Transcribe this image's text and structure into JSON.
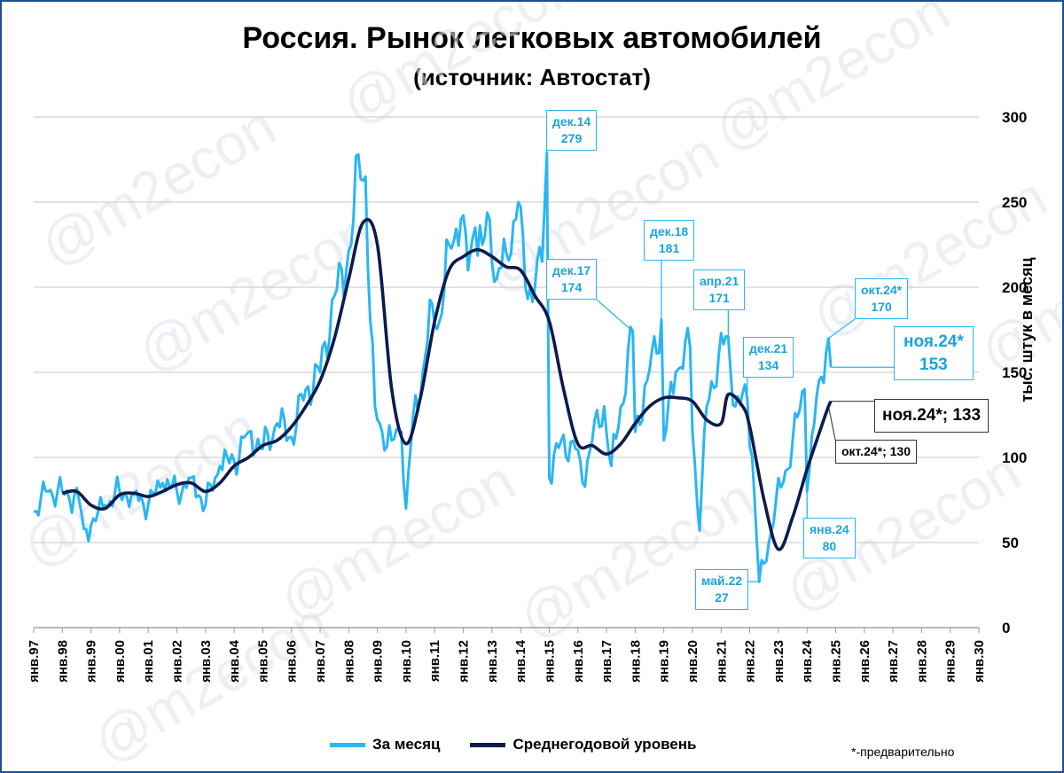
{
  "chart_data": {
    "type": "line",
    "title": "Россия. Рынок легковых автомобилей",
    "subtitle": "(источник: Автостат)",
    "ylabel": "тыс. штук в месяц",
    "ylim": [
      0,
      300
    ],
    "yticks": [
      "0",
      "50",
      "100",
      "150",
      "200",
      "250",
      "300"
    ],
    "xticks": [
      "янв.97",
      "янв.98",
      "янв.99",
      "янв.00",
      "янв.01",
      "янв.02",
      "янв.03",
      "янв.04",
      "янв.05",
      "янв.06",
      "янв.07",
      "янв.08",
      "янв.09",
      "янв.10",
      "янв.11",
      "янв.12",
      "янв.13",
      "янв.14",
      "янв.15",
      "янв.16",
      "янв.17",
      "янв.18",
      "янв.19",
      "янв.20",
      "янв.21",
      "янв.22",
      "янв.23",
      "янв.24",
      "янв.25",
      "янв.26",
      "янв.27",
      "янв.28",
      "янв.29",
      "янв.30"
    ],
    "grid": true,
    "legend_position": "bottom",
    "series": [
      {
        "name": "За месяц",
        "color": "#29b6f2",
        "points": [
          [
            "1997-01",
            68
          ],
          [
            "1997-07",
            80
          ],
          [
            "1998-01",
            80
          ],
          [
            "1998-04",
            75
          ],
          [
            "1998-07",
            82
          ],
          [
            "1998-10",
            58
          ],
          [
            "1999-01",
            60
          ],
          [
            "1999-07",
            72
          ],
          [
            "2000-01",
            80
          ],
          [
            "2000-07",
            78
          ],
          [
            "2001-01",
            72
          ],
          [
            "2001-07",
            85
          ],
          [
            "2002-01",
            80
          ],
          [
            "2002-07",
            88
          ],
          [
            "2003-01",
            72
          ],
          [
            "2003-07",
            95
          ],
          [
            "2004-01",
            98
          ],
          [
            "2004-07",
            115
          ],
          [
            "2005-01",
            105
          ],
          [
            "2005-07",
            120
          ],
          [
            "2006-01",
            112
          ],
          [
            "2006-07",
            140
          ],
          [
            "2007-01",
            150
          ],
          [
            "2007-07",
            195
          ],
          [
            "2007-12",
            210
          ],
          [
            "2008-03",
            240
          ],
          [
            "2008-05",
            278
          ],
          [
            "2008-08",
            265
          ],
          [
            "2008-10",
            180
          ],
          [
            "2008-12",
            130
          ],
          [
            "2009-03",
            115
          ],
          [
            "2009-07",
            110
          ],
          [
            "2009-11",
            115
          ],
          [
            "2010-01",
            70
          ],
          [
            "2010-04",
            125
          ],
          [
            "2010-08",
            150
          ],
          [
            "2010-12",
            190
          ],
          [
            "2011-03",
            180
          ],
          [
            "2011-07",
            225
          ],
          [
            "2011-12",
            240
          ],
          [
            "2012-03",
            210
          ],
          [
            "2012-06",
            235
          ],
          [
            "2012-09",
            225
          ],
          [
            "2012-12",
            240
          ],
          [
            "2013-03",
            205
          ],
          [
            "2013-07",
            220
          ],
          [
            "2013-12",
            250
          ],
          [
            "2014-03",
            200
          ],
          [
            "2014-07",
            200
          ],
          [
            "2014-10",
            215
          ],
          [
            "2014-12",
            279
          ],
          [
            "2015-01",
            88
          ],
          [
            "2015-06",
            110
          ],
          [
            "2015-12",
            105
          ],
          [
            "2016-03",
            85
          ],
          [
            "2016-07",
            110
          ],
          [
            "2016-12",
            130
          ],
          [
            "2017-03",
            95
          ],
          [
            "2017-07",
            130
          ],
          [
            "2017-12",
            174
          ],
          [
            "2018-01",
            115
          ],
          [
            "2018-06",
            145
          ],
          [
            "2018-12",
            181
          ],
          [
            "2019-01",
            110
          ],
          [
            "2019-06",
            150
          ],
          [
            "2019-12",
            165
          ],
          [
            "2020-01",
            115
          ],
          [
            "2020-04",
            57
          ],
          [
            "2020-07",
            130
          ],
          [
            "2020-12",
            160
          ],
          [
            "2021-04",
            171
          ],
          [
            "2021-07",
            130
          ],
          [
            "2021-12",
            134
          ],
          [
            "2022-02",
            100
          ],
          [
            "2022-05",
            27
          ],
          [
            "2022-09",
            50
          ],
          [
            "2022-12",
            75
          ],
          [
            "2023-03",
            85
          ],
          [
            "2023-07",
            110
          ],
          [
            "2023-12",
            140
          ],
          [
            "2024-01",
            80
          ],
          [
            "2024-06",
            145
          ],
          [
            "2024-10",
            170
          ],
          [
            "2024-11",
            153
          ]
        ]
      },
      {
        "name": "Среднегодовой уровень",
        "color": "#0d1b4c",
        "points": [
          [
            "1998-01",
            79
          ],
          [
            "1998-07",
            80
          ],
          [
            "1999-01",
            72
          ],
          [
            "1999-07",
            70
          ],
          [
            "2000-01",
            78
          ],
          [
            "2000-07",
            79
          ],
          [
            "2001-01",
            77
          ],
          [
            "2001-07",
            80
          ],
          [
            "2002-01",
            84
          ],
          [
            "2002-07",
            85
          ],
          [
            "2003-01",
            80
          ],
          [
            "2003-07",
            85
          ],
          [
            "2004-01",
            95
          ],
          [
            "2004-07",
            100
          ],
          [
            "2005-01",
            107
          ],
          [
            "2005-07",
            110
          ],
          [
            "2006-01",
            118
          ],
          [
            "2006-07",
            130
          ],
          [
            "2007-01",
            145
          ],
          [
            "2007-07",
            170
          ],
          [
            "2008-01",
            205
          ],
          [
            "2008-07",
            238
          ],
          [
            "2009-01",
            225
          ],
          [
            "2009-07",
            140
          ],
          [
            "2010-01",
            108
          ],
          [
            "2010-07",
            135
          ],
          [
            "2011-01",
            180
          ],
          [
            "2011-07",
            210
          ],
          [
            "2012-01",
            218
          ],
          [
            "2012-07",
            222
          ],
          [
            "2013-01",
            218
          ],
          [
            "2013-07",
            212
          ],
          [
            "2014-01",
            210
          ],
          [
            "2014-07",
            195
          ],
          [
            "2015-01",
            180
          ],
          [
            "2015-07",
            140
          ],
          [
            "2016-01",
            108
          ],
          [
            "2016-07",
            107
          ],
          [
            "2017-01",
            102
          ],
          [
            "2017-07",
            108
          ],
          [
            "2018-01",
            120
          ],
          [
            "2018-07",
            130
          ],
          [
            "2019-01",
            135
          ],
          [
            "2019-07",
            135
          ],
          [
            "2020-01",
            133
          ],
          [
            "2020-07",
            122
          ],
          [
            "2021-01",
            120
          ],
          [
            "2021-04",
            137
          ],
          [
            "2021-10",
            130
          ],
          [
            "2022-01",
            118
          ],
          [
            "2022-07",
            75
          ],
          [
            "2023-01",
            46
          ],
          [
            "2023-07",
            65
          ],
          [
            "2024-01",
            93
          ],
          [
            "2024-07",
            118
          ],
          [
            "2024-10",
            130
          ],
          [
            "2024-11",
            133
          ]
        ]
      }
    ],
    "annotations": [
      {
        "label": "дек.14",
        "value": "279"
      },
      {
        "label": "дек.17",
        "value": "174"
      },
      {
        "label": "дек.18",
        "value": "181"
      },
      {
        "label": "апр.21",
        "value": "171"
      },
      {
        "label": "дек.21",
        "value": "134"
      },
      {
        "label": "окт.24*",
        "value": "170"
      },
      {
        "label": "ноя.24*",
        "value": "153"
      },
      {
        "label": "янв.24",
        "value": "80"
      },
      {
        "label": "май.22",
        "value": "27"
      },
      {
        "label": "ноя.24*; 133",
        "value": ""
      },
      {
        "label": "окт.24*; 130",
        "value": ""
      }
    ],
    "note": "*-предварительно"
  },
  "watermark": "@m2econ"
}
